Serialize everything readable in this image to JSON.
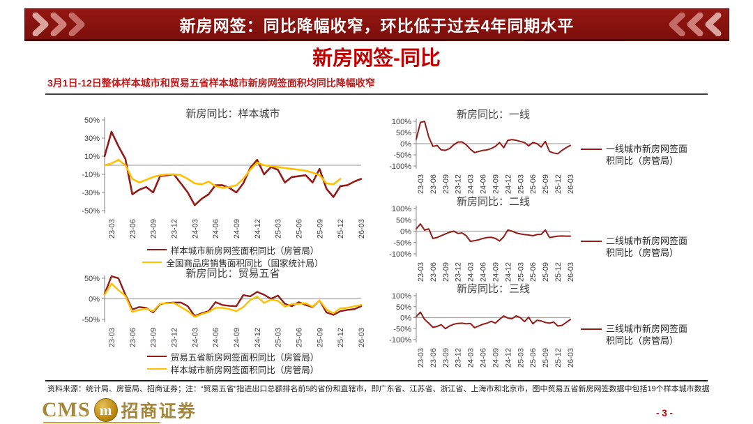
{
  "banner": {
    "title": "新房网签：同比降幅收窄，环比低于过去4年同期水平"
  },
  "page": {
    "title": "新房网签-同比",
    "subtitle": "3月1日-12日整体样本城市和贸易五省样本城市新房网签面积均同比降幅收窄",
    "page_number": "- 3 -"
  },
  "footer": {
    "source_note": "资料来源：统计局、房管局、招商证券；注：“贸易五省”指进出口总额排名前5的省份和直辖市，即广东省、江苏省、浙江省、上海市和北京市，图中贸易五省新房网签数据中包括19个样本城市数据"
  },
  "logo": {
    "cms_text": "CMS",
    "monogram": "m",
    "company_name": "招商证券"
  },
  "colors": {
    "banner_bg": "#83120E",
    "accent_red": "#C00000",
    "dark_red": "#921A17",
    "gold": "#FFC000",
    "logo_gold": "#A5873B",
    "zero_line": "#A6A6A6",
    "axis_text": "#404040",
    "chevron_light": "#DCA29C",
    "chevron_mid": "#CF7F78",
    "chevron_dark": "#C46A64"
  },
  "months": [
    "23-02",
    "23-03",
    "23-04",
    "23-05",
    "23-06",
    "23-07",
    "23-08",
    "23-09",
    "23-10",
    "23-11",
    "23-12",
    "24-01",
    "24-02",
    "24-03",
    "24-04",
    "24-05",
    "24-06",
    "24-07",
    "24-08",
    "24-09",
    "24-10",
    "24-11",
    "24-12",
    "25-01",
    "25-02",
    "25-03",
    "25-04",
    "25-05",
    "25-06",
    "25-07",
    "25-08",
    "25-09",
    "25-10",
    "25-11",
    "25-12",
    "26-01",
    "26-02",
    "26-03"
  ],
  "x_ticks": {
    "labels": [
      "23-03",
      "23-06",
      "23-09",
      "23-12",
      "24-03",
      "24-06",
      "24-09",
      "24-12",
      "25-03",
      "25-06",
      "25-09",
      "25-12",
      "26-03"
    ],
    "month_indices": [
      1,
      4,
      7,
      10,
      13,
      16,
      19,
      22,
      25,
      28,
      31,
      34,
      37
    ]
  },
  "chart_data": [
    {
      "id": "sample-cities",
      "type": "line",
      "title": "新房同比：样本城市",
      "ylim": [
        -50,
        50
      ],
      "yticks": [
        50,
        30,
        10,
        -10,
        -30,
        -50
      ],
      "grid": false,
      "legend_position": "bottom",
      "series": [
        {
          "name": "样本城市新房网签面积同比（房管局）",
          "color_key": "dark_red",
          "values": [
            10,
            37,
            21,
            7,
            -32,
            -27,
            -24,
            -30,
            -12,
            -11,
            -10,
            -20,
            -30,
            -44,
            -37,
            -32,
            -22,
            -22,
            -25,
            -30,
            -20,
            -3,
            6,
            -10,
            -2,
            -5,
            -19,
            -13,
            -12,
            -11,
            -19,
            -4,
            -26,
            -35,
            -23,
            -22,
            -18,
            -15
          ]
        },
        {
          "name": "全国商品房销售面积同比（国家统计局）",
          "color_key": "gold",
          "values": [
            0,
            2,
            6,
            0,
            -15,
            -19,
            -16,
            -13,
            -11,
            -10,
            -10,
            -11,
            -15,
            -20,
            -21,
            -18,
            -23,
            -25,
            -24,
            -22,
            -15,
            -5,
            3,
            0,
            -1,
            -2,
            -3,
            -4,
            -5,
            -6,
            -8,
            -11,
            -20,
            -21,
            -15,
            null,
            null,
            null
          ]
        }
      ]
    },
    {
      "id": "trade-five",
      "type": "line",
      "title": "新房同比：贸易五省",
      "ylim": [
        -50,
        50
      ],
      "yticks": [
        50,
        0,
        -50
      ],
      "grid": false,
      "legend_position": "bottom",
      "series": [
        {
          "name": "贸易五省新房网签面积同比（房管局）",
          "color_key": "dark_red",
          "values": [
            12,
            55,
            50,
            10,
            -26,
            -20,
            -22,
            -33,
            -13,
            -10,
            -9,
            -9,
            -18,
            -42,
            -35,
            -30,
            -8,
            -15,
            -17,
            -18,
            9,
            6,
            17,
            10,
            0,
            8,
            -12,
            -18,
            -8,
            -15,
            -20,
            -4,
            -33,
            -39,
            -30,
            -27,
            -25,
            -18
          ]
        },
        {
          "name": "样本城市新房网签面积同比（房管局）",
          "color_key": "gold",
          "values": [
            10,
            37,
            21,
            7,
            -32,
            -27,
            -24,
            -30,
            -12,
            -11,
            -10,
            -20,
            -30,
            -44,
            -37,
            -32,
            -22,
            -22,
            -25,
            -30,
            -20,
            -3,
            6,
            -10,
            -2,
            -5,
            -19,
            -13,
            -12,
            -11,
            -19,
            -4,
            -26,
            -35,
            -23,
            -22,
            -18,
            -15
          ]
        }
      ]
    },
    {
      "id": "tier1",
      "type": "line",
      "title": "新房同比：一线",
      "ylim": [
        -100,
        100
      ],
      "yticks": [
        100,
        50,
        0,
        -50,
        -100
      ],
      "grid": false,
      "legend_position": "right",
      "series": [
        {
          "name": "一线城市新房网签面积同比（房管局）",
          "color_key": "dark_red",
          "values": [
            20,
            95,
            100,
            30,
            -12,
            -8,
            -28,
            -30,
            -22,
            -5,
            7,
            8,
            -5,
            -25,
            -40,
            -35,
            -30,
            -28,
            -22,
            -12,
            5,
            -18,
            15,
            18,
            15,
            10,
            5,
            -10,
            5,
            0,
            -15,
            10,
            -35,
            -42,
            -45,
            -30,
            -18,
            -8
          ]
        }
      ]
    },
    {
      "id": "tier2",
      "type": "line",
      "title": "新房同比：二线",
      "ylim": [
        -100,
        100
      ],
      "yticks": [
        100,
        50,
        0,
        -50,
        -100
      ],
      "grid": false,
      "legend_position": "right",
      "series": [
        {
          "name": "二线城市新房网签面积同比（房管局）",
          "color_key": "dark_red",
          "values": [
            10,
            32,
            5,
            10,
            -32,
            -28,
            -20,
            -12,
            -5,
            0,
            -10,
            -8,
            -20,
            -45,
            -42,
            -38,
            -32,
            -28,
            -27,
            -32,
            -43,
            -25,
            5,
            0,
            -8,
            -12,
            -15,
            -17,
            -20,
            -15,
            -14,
            5,
            -28,
            -25,
            -22,
            -21,
            -22,
            -22
          ]
        }
      ]
    },
    {
      "id": "tier3",
      "type": "line",
      "title": "新房同比：三线",
      "ylim": [
        -100,
        100
      ],
      "yticks": [
        100,
        50,
        0,
        -50,
        -100
      ],
      "grid": false,
      "legend_position": "right",
      "series": [
        {
          "name": "三线城市新房网签面积同比（房管局）",
          "color_key": "dark_red",
          "values": [
            5,
            25,
            -8,
            -25,
            -44,
            -40,
            -32,
            -50,
            -38,
            -30,
            -26,
            -25,
            -28,
            -26,
            -46,
            -38,
            -30,
            -25,
            -17,
            -25,
            -8,
            8,
            -2,
            -5,
            8,
            0,
            -18,
            2,
            -28,
            -12,
            -15,
            -22,
            -25,
            -20,
            -38,
            -35,
            -22,
            -8
          ]
        }
      ]
    }
  ]
}
